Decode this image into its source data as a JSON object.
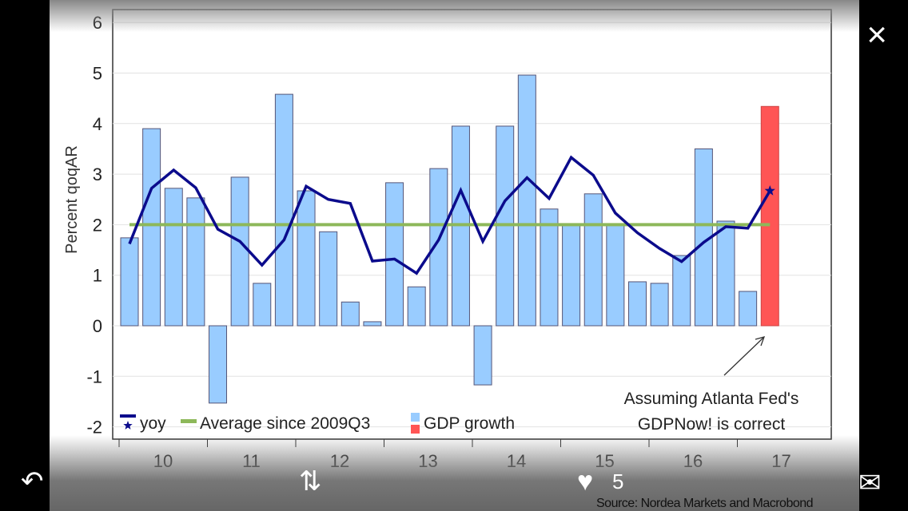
{
  "chart_data": {
    "type": "bar",
    "ylabel": "Percent qoqAR",
    "ylim": [
      -2,
      6
    ],
    "yticks": [
      6,
      5,
      4,
      3,
      2,
      1,
      0,
      -1,
      -2
    ],
    "xtick_labels": [
      "10",
      "11",
      "12",
      "13",
      "14",
      "15",
      "16",
      "17"
    ],
    "grid": true,
    "legend_placement": "bottom-left",
    "legend": [
      "yoy",
      "Average since 2009Q3",
      "GDP growth"
    ],
    "annotation": [
      "Assuming Atlanta Fed's",
      "GDPNow! is correct"
    ],
    "source": "Source: Nordea Markets and Macrobond",
    "series": [
      {
        "name": "GDP growth",
        "type": "bar",
        "color": "#99ccff",
        "highlight_color": "#ff5555",
        "highlight_last": true,
        "values": [
          1.74,
          3.9,
          2.72,
          2.53,
          -1.53,
          2.94,
          0.84,
          4.58,
          2.67,
          1.86,
          0.47,
          0.08,
          2.83,
          0.77,
          3.11,
          3.95,
          -1.17,
          3.95,
          4.96,
          2.31,
          2.0,
          2.61,
          2.0,
          0.87,
          0.84,
          1.39,
          3.5,
          2.07,
          0.68,
          4.34
        ]
      },
      {
        "name": "yoy",
        "type": "line",
        "color": "#0b0b8c",
        "values": [
          1.62,
          2.72,
          3.08,
          2.73,
          1.91,
          1.67,
          1.2,
          1.7,
          2.76,
          2.5,
          2.42,
          1.28,
          1.32,
          1.04,
          1.7,
          2.68,
          1.67,
          2.47,
          2.93,
          2.52,
          3.33,
          2.98,
          2.23,
          1.84,
          1.53,
          1.27,
          1.65,
          1.96,
          1.93,
          2.67
        ]
      },
      {
        "name": "Average since 2009Q3",
        "type": "line",
        "color": "#8db85a",
        "value": 2.0
      }
    ]
  },
  "viewer": {
    "close": "×",
    "reply": "↶",
    "retweet": "⇅",
    "like": "♥",
    "like_count": "5",
    "message": "✉"
  }
}
